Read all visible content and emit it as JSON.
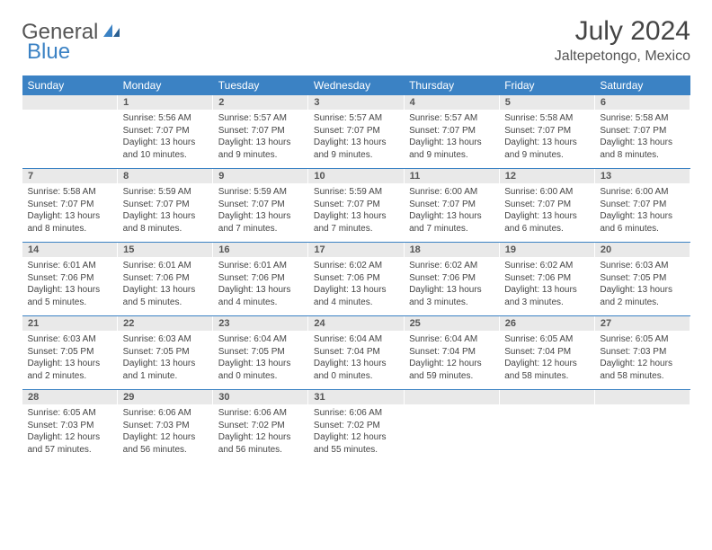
{
  "logo": {
    "text1": "General",
    "text2": "Blue",
    "text_color1": "#555555",
    "text_color2": "#3b82c4"
  },
  "title": "July 2024",
  "location": "Jaltepetongo, Mexico",
  "colors": {
    "header_bg": "#3b82c4",
    "header_text": "#ffffff",
    "daynum_bg": "#e9e9e9",
    "sep": "#3b82c4",
    "body_text": "#444444"
  },
  "weekdays": [
    "Sunday",
    "Monday",
    "Tuesday",
    "Wednesday",
    "Thursday",
    "Friday",
    "Saturday"
  ],
  "start_offset": 1,
  "days": [
    {
      "n": 1,
      "sr": "5:56 AM",
      "ss": "7:07 PM",
      "dl": "13 hours and 10 minutes."
    },
    {
      "n": 2,
      "sr": "5:57 AM",
      "ss": "7:07 PM",
      "dl": "13 hours and 9 minutes."
    },
    {
      "n": 3,
      "sr": "5:57 AM",
      "ss": "7:07 PM",
      "dl": "13 hours and 9 minutes."
    },
    {
      "n": 4,
      "sr": "5:57 AM",
      "ss": "7:07 PM",
      "dl": "13 hours and 9 minutes."
    },
    {
      "n": 5,
      "sr": "5:58 AM",
      "ss": "7:07 PM",
      "dl": "13 hours and 9 minutes."
    },
    {
      "n": 6,
      "sr": "5:58 AM",
      "ss": "7:07 PM",
      "dl": "13 hours and 8 minutes."
    },
    {
      "n": 7,
      "sr": "5:58 AM",
      "ss": "7:07 PM",
      "dl": "13 hours and 8 minutes."
    },
    {
      "n": 8,
      "sr": "5:59 AM",
      "ss": "7:07 PM",
      "dl": "13 hours and 8 minutes."
    },
    {
      "n": 9,
      "sr": "5:59 AM",
      "ss": "7:07 PM",
      "dl": "13 hours and 7 minutes."
    },
    {
      "n": 10,
      "sr": "5:59 AM",
      "ss": "7:07 PM",
      "dl": "13 hours and 7 minutes."
    },
    {
      "n": 11,
      "sr": "6:00 AM",
      "ss": "7:07 PM",
      "dl": "13 hours and 7 minutes."
    },
    {
      "n": 12,
      "sr": "6:00 AM",
      "ss": "7:07 PM",
      "dl": "13 hours and 6 minutes."
    },
    {
      "n": 13,
      "sr": "6:00 AM",
      "ss": "7:07 PM",
      "dl": "13 hours and 6 minutes."
    },
    {
      "n": 14,
      "sr": "6:01 AM",
      "ss": "7:06 PM",
      "dl": "13 hours and 5 minutes."
    },
    {
      "n": 15,
      "sr": "6:01 AM",
      "ss": "7:06 PM",
      "dl": "13 hours and 5 minutes."
    },
    {
      "n": 16,
      "sr": "6:01 AM",
      "ss": "7:06 PM",
      "dl": "13 hours and 4 minutes."
    },
    {
      "n": 17,
      "sr": "6:02 AM",
      "ss": "7:06 PM",
      "dl": "13 hours and 4 minutes."
    },
    {
      "n": 18,
      "sr": "6:02 AM",
      "ss": "7:06 PM",
      "dl": "13 hours and 3 minutes."
    },
    {
      "n": 19,
      "sr": "6:02 AM",
      "ss": "7:06 PM",
      "dl": "13 hours and 3 minutes."
    },
    {
      "n": 20,
      "sr": "6:03 AM",
      "ss": "7:05 PM",
      "dl": "13 hours and 2 minutes."
    },
    {
      "n": 21,
      "sr": "6:03 AM",
      "ss": "7:05 PM",
      "dl": "13 hours and 2 minutes."
    },
    {
      "n": 22,
      "sr": "6:03 AM",
      "ss": "7:05 PM",
      "dl": "13 hours and 1 minute."
    },
    {
      "n": 23,
      "sr": "6:04 AM",
      "ss": "7:05 PM",
      "dl": "13 hours and 0 minutes."
    },
    {
      "n": 24,
      "sr": "6:04 AM",
      "ss": "7:04 PM",
      "dl": "13 hours and 0 minutes."
    },
    {
      "n": 25,
      "sr": "6:04 AM",
      "ss": "7:04 PM",
      "dl": "12 hours and 59 minutes."
    },
    {
      "n": 26,
      "sr": "6:05 AM",
      "ss": "7:04 PM",
      "dl": "12 hours and 58 minutes."
    },
    {
      "n": 27,
      "sr": "6:05 AM",
      "ss": "7:03 PM",
      "dl": "12 hours and 58 minutes."
    },
    {
      "n": 28,
      "sr": "6:05 AM",
      "ss": "7:03 PM",
      "dl": "12 hours and 57 minutes."
    },
    {
      "n": 29,
      "sr": "6:06 AM",
      "ss": "7:03 PM",
      "dl": "12 hours and 56 minutes."
    },
    {
      "n": 30,
      "sr": "6:06 AM",
      "ss": "7:02 PM",
      "dl": "12 hours and 56 minutes."
    },
    {
      "n": 31,
      "sr": "6:06 AM",
      "ss": "7:02 PM",
      "dl": "12 hours and 55 minutes."
    }
  ],
  "labels": {
    "sunrise": "Sunrise:",
    "sunset": "Sunset:",
    "daylight": "Daylight:"
  }
}
